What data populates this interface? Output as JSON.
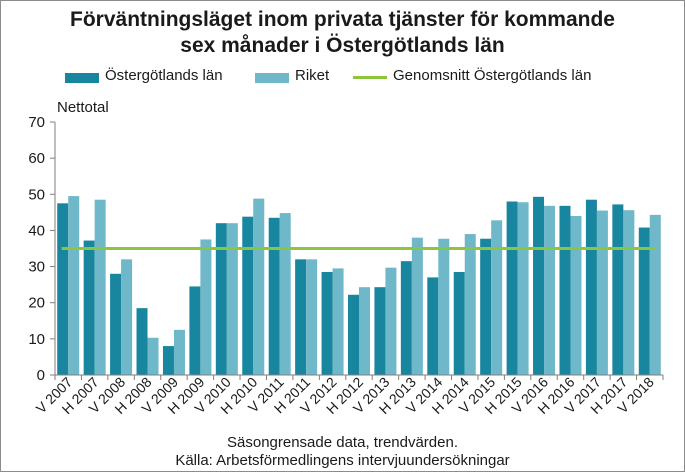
{
  "chart_data": {
    "type": "bar",
    "title_lines": [
      "Förväntningsläget inom privata tjänster för kommande",
      "sex månader i Östergötlands län"
    ],
    "ylabel": "Nettotal",
    "ylim": [
      0,
      70
    ],
    "yticks": [
      0,
      10,
      20,
      30,
      40,
      50,
      60,
      70
    ],
    "grid": false,
    "legend_position": "top",
    "categories": [
      "V 2007",
      "H 2007",
      "V 2008",
      "H 2008",
      "V 2009",
      "H 2009",
      "V 2010",
      "H 2010",
      "V 2011",
      "H 2011",
      "V 2012",
      "H 2012",
      "V 2013",
      "H 2013",
      "V 2014",
      "H 2014",
      "V 2015",
      "H 2015",
      "V 2016",
      "H 2016",
      "V 2017",
      "H 2017",
      "V 2018"
    ],
    "series": [
      {
        "name": "Östergötlands län",
        "type": "bar",
        "color": "#17869e",
        "values": [
          47.5,
          37.2,
          28.0,
          18.5,
          8.0,
          24.5,
          42.0,
          43.8,
          43.5,
          32.0,
          28.5,
          22.2,
          24.3,
          31.5,
          27.0,
          28.5,
          37.7,
          48.0,
          49.3,
          46.8,
          48.5,
          47.2,
          40.8
        ]
      },
      {
        "name": "Riket",
        "type": "bar",
        "color": "#6fb8c9",
        "values": [
          49.5,
          48.5,
          32.0,
          10.3,
          12.5,
          37.5,
          42.0,
          48.8,
          44.8,
          32.0,
          29.5,
          24.3,
          29.7,
          38.0,
          37.7,
          39.0,
          42.8,
          47.8,
          46.8,
          44.0,
          45.5,
          45.6,
          44.3
        ]
      },
      {
        "name": "Genomsnitt Östergötlands län",
        "type": "line",
        "color": "#8cc63f",
        "value": 35.0
      }
    ],
    "footnotes": [
      "Säsongrensade data, trendvärden.",
      "Källa: Arbetsförmedlingens intervjuundersökningar"
    ]
  }
}
